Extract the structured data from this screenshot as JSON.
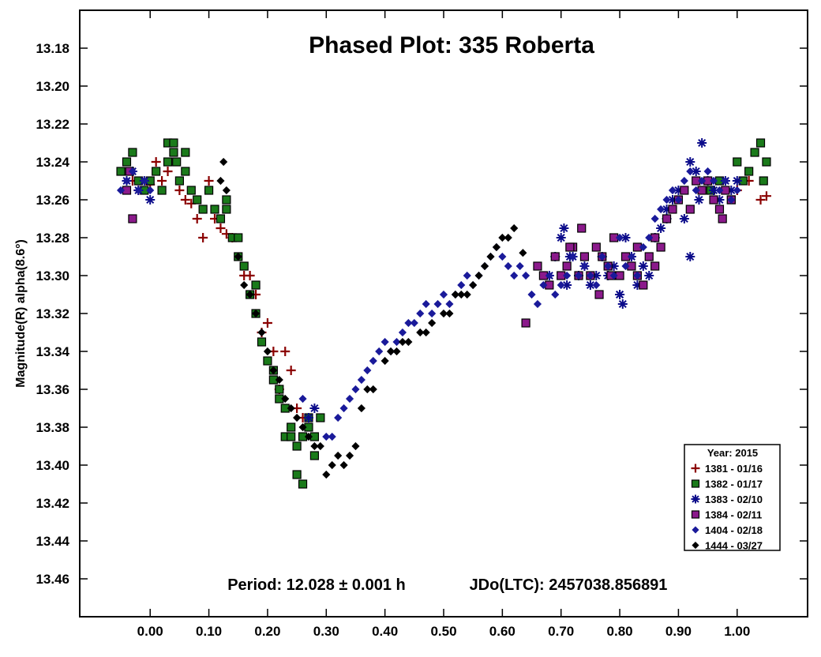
{
  "chart_data": {
    "type": "scatter",
    "title": "Phased Plot: 335 Roberta",
    "xlabel": "",
    "ylabel": "Magnitude(R) alpha(8.6°)",
    "xlim": [
      -0.12,
      1.12
    ],
    "ylim": [
      13.16,
      13.48
    ],
    "y_inverted": true,
    "x_ticks": [
      0.0,
      0.1,
      0.2,
      0.3,
      0.4,
      0.5,
      0.6,
      0.7,
      0.8,
      0.9,
      1.0
    ],
    "x_tick_labels": [
      "0.00",
      "0.10",
      "0.20",
      "0.30",
      "0.40",
      "0.50",
      "0.60",
      "0.70",
      "0.80",
      "0.90",
      "1.00"
    ],
    "y_ticks": [
      13.18,
      13.2,
      13.22,
      13.24,
      13.26,
      13.28,
      13.3,
      13.32,
      13.34,
      13.36,
      13.38,
      13.4,
      13.42,
      13.44,
      13.46
    ],
    "y_tick_labels": [
      "13.18",
      "13.20",
      "13.22",
      "13.24",
      "13.26",
      "13.28",
      "13.30",
      "13.32",
      "13.34",
      "13.36",
      "13.38",
      "13.40",
      "13.42",
      "13.44",
      "13.46"
    ],
    "grid": false,
    "legend_position": "bottom-right",
    "legend_title": "Year: 2015",
    "annotations": {
      "period": "Period: 12.028 ± 0.001 h",
      "epoch": "JDo(LTC): 2457038.856891"
    },
    "series": [
      {
        "name": "1381 - 01/16",
        "marker": "plus",
        "color": "#8b0000",
        "x": [
          -0.03,
          -0.02,
          0.0,
          0.01,
          0.02,
          0.03,
          0.05,
          0.06,
          0.07,
          0.08,
          0.09,
          0.1,
          0.11,
          0.12,
          0.13,
          0.14,
          0.16,
          0.17,
          0.18,
          0.19,
          0.2,
          0.21,
          0.22,
          0.23,
          0.24,
          0.25,
          0.26,
          1.0,
          1.02,
          1.04,
          1.05
        ],
        "y": [
          13.25,
          13.255,
          13.252,
          13.24,
          13.25,
          13.245,
          13.255,
          13.26,
          13.262,
          13.27,
          13.28,
          13.25,
          13.27,
          13.275,
          13.278,
          13.28,
          13.3,
          13.3,
          13.31,
          13.33,
          13.325,
          13.34,
          13.36,
          13.34,
          13.35,
          13.37,
          13.375,
          13.255,
          13.25,
          13.26,
          13.258
        ]
      },
      {
        "name": "1382 - 01/17",
        "marker": "square",
        "color": "#1a7a1a",
        "x": [
          -0.05,
          -0.04,
          -0.03,
          -0.02,
          -0.01,
          0.0,
          0.01,
          0.02,
          0.03,
          0.04,
          0.05,
          0.06,
          0.07,
          0.08,
          0.09,
          0.1,
          0.11,
          0.12,
          0.13,
          0.14,
          0.15,
          0.16,
          0.17,
          0.18,
          0.19,
          0.2,
          0.21,
          0.22,
          0.23,
          0.24,
          0.25,
          0.26,
          0.27,
          0.28,
          0.29,
          0.25,
          0.23,
          0.26,
          0.03,
          0.04,
          0.045,
          0.06,
          0.13,
          0.24,
          0.27,
          0.28,
          0.15,
          0.18,
          0.21,
          0.22,
          0.955,
          0.97,
          0.99,
          1.0,
          1.01,
          1.02,
          1.03,
          1.04,
          1.05,
          1.045
        ],
        "y": [
          13.245,
          13.24,
          13.235,
          13.25,
          13.255,
          13.25,
          13.245,
          13.255,
          13.24,
          13.235,
          13.25,
          13.245,
          13.255,
          13.26,
          13.265,
          13.255,
          13.265,
          13.27,
          13.265,
          13.28,
          13.29,
          13.295,
          13.31,
          13.32,
          13.335,
          13.345,
          13.355,
          13.36,
          13.37,
          13.38,
          13.39,
          13.385,
          13.38,
          13.395,
          13.375,
          13.405,
          13.385,
          13.41,
          13.23,
          13.23,
          13.24,
          13.235,
          13.26,
          13.385,
          13.375,
          13.385,
          13.28,
          13.305,
          13.35,
          13.365,
          13.255,
          13.25,
          13.26,
          13.24,
          13.25,
          13.245,
          13.235,
          13.23,
          13.24,
          13.25
        ]
      },
      {
        "name": "1383 - 02/10",
        "marker": "asterisk",
        "color": "#0b0b8a",
        "x": [
          -0.04,
          -0.03,
          -0.02,
          -0.01,
          0.0,
          0.27,
          0.28,
          0.68,
          0.69,
          0.7,
          0.71,
          0.72,
          0.73,
          0.74,
          0.75,
          0.76,
          0.77,
          0.78,
          0.79,
          0.8,
          0.81,
          0.82,
          0.83,
          0.84,
          0.85,
          0.86,
          0.87,
          0.88,
          0.89,
          0.9,
          0.91,
          0.92,
          0.93,
          0.94,
          0.95,
          0.96,
          0.97,
          0.98,
          0.99,
          1.0,
          0.705,
          0.715,
          0.8,
          0.805,
          0.92,
          0.935,
          0.88
        ],
        "y": [
          13.25,
          13.245,
          13.255,
          13.25,
          13.26,
          13.375,
          13.37,
          13.3,
          13.29,
          13.28,
          13.305,
          13.29,
          13.3,
          13.295,
          13.305,
          13.3,
          13.29,
          13.3,
          13.295,
          13.31,
          13.28,
          13.29,
          13.305,
          13.295,
          13.3,
          13.28,
          13.275,
          13.265,
          13.26,
          13.255,
          13.27,
          13.24,
          13.245,
          13.23,
          13.25,
          13.255,
          13.26,
          13.25,
          13.255,
          13.25,
          13.275,
          13.29,
          13.31,
          13.315,
          13.29,
          13.26,
          13.27
        ]
      },
      {
        "name": "1384 - 02/11",
        "marker": "square",
        "color": "#8b1a8b",
        "x": [
          -0.04,
          -0.03,
          -0.035,
          0.64,
          0.66,
          0.67,
          0.68,
          0.69,
          0.7,
          0.71,
          0.72,
          0.73,
          0.74,
          0.75,
          0.76,
          0.77,
          0.78,
          0.79,
          0.8,
          0.81,
          0.82,
          0.83,
          0.84,
          0.85,
          0.86,
          0.87,
          0.88,
          0.89,
          0.9,
          0.91,
          0.92,
          0.93,
          0.94,
          0.95,
          0.96,
          0.97,
          0.98,
          0.99,
          0.735,
          0.765,
          0.785,
          0.83,
          0.86,
          0.975,
          0.715
        ],
        "y": [
          13.255,
          13.27,
          13.245,
          13.325,
          13.295,
          13.3,
          13.305,
          13.29,
          13.3,
          13.295,
          13.285,
          13.3,
          13.29,
          13.3,
          13.285,
          13.29,
          13.295,
          13.28,
          13.3,
          13.29,
          13.295,
          13.285,
          13.305,
          13.29,
          13.28,
          13.285,
          13.27,
          13.265,
          13.26,
          13.255,
          13.265,
          13.25,
          13.255,
          13.25,
          13.26,
          13.265,
          13.255,
          13.26,
          13.275,
          13.31,
          13.3,
          13.3,
          13.295,
          13.27,
          13.285
        ]
      },
      {
        "name": "1404 - 02/18",
        "marker": "diamond",
        "color": "#1a1a9a",
        "x": [
          -0.05,
          -0.04,
          -0.03,
          -0.02,
          -0.01,
          0.0,
          0.26,
          0.3,
          0.31,
          0.32,
          0.33,
          0.34,
          0.35,
          0.36,
          0.37,
          0.38,
          0.39,
          0.4,
          0.41,
          0.42,
          0.43,
          0.44,
          0.45,
          0.46,
          0.47,
          0.48,
          0.49,
          0.5,
          0.51,
          0.52,
          0.53,
          0.54,
          0.55,
          0.56,
          0.57,
          0.58,
          0.59,
          0.6,
          0.61,
          0.62,
          0.63,
          0.64,
          0.65,
          0.66,
          0.67,
          0.68,
          0.69,
          0.7,
          0.71,
          0.72,
          0.73,
          0.74,
          0.75,
          0.76,
          0.77,
          0.78,
          0.79,
          0.8,
          0.81,
          0.82,
          0.83,
          0.84,
          0.85,
          0.86,
          0.87,
          0.88,
          0.89,
          0.9,
          0.91,
          0.92,
          0.93,
          0.94,
          0.95,
          0.96,
          0.97,
          0.98,
          0.99,
          1.0
        ],
        "y": [
          13.255,
          13.25,
          13.245,
          13.255,
          13.25,
          13.255,
          13.365,
          13.385,
          13.385,
          13.375,
          13.37,
          13.365,
          13.36,
          13.355,
          13.35,
          13.345,
          13.34,
          13.335,
          13.34,
          13.335,
          13.33,
          13.325,
          13.325,
          13.32,
          13.315,
          13.32,
          13.315,
          13.31,
          13.315,
          13.31,
          13.305,
          13.3,
          13.305,
          13.3,
          13.295,
          13.29,
          13.285,
          13.29,
          13.295,
          13.3,
          13.295,
          13.3,
          13.31,
          13.315,
          13.305,
          13.3,
          13.31,
          13.305,
          13.3,
          13.29,
          13.3,
          13.295,
          13.3,
          13.305,
          13.29,
          13.295,
          13.3,
          13.28,
          13.295,
          13.29,
          13.3,
          13.285,
          13.28,
          13.27,
          13.265,
          13.26,
          13.255,
          13.26,
          13.25,
          13.245,
          13.255,
          13.25,
          13.245,
          13.25,
          13.255,
          13.25,
          13.26,
          13.255
        ]
      },
      {
        "name": "1444 - 03/27",
        "marker": "diamond",
        "color": "#000000",
        "x": [
          0.12,
          0.125,
          0.13,
          0.15,
          0.16,
          0.17,
          0.18,
          0.19,
          0.2,
          0.21,
          0.22,
          0.23,
          0.24,
          0.25,
          0.26,
          0.27,
          0.28,
          0.29,
          0.3,
          0.31,
          0.32,
          0.33,
          0.34,
          0.35,
          0.38,
          0.4,
          0.42,
          0.44,
          0.46,
          0.48,
          0.5,
          0.52,
          0.53,
          0.55,
          0.57,
          0.58,
          0.59,
          0.6,
          0.61,
          0.62,
          0.635,
          0.36,
          0.37,
          0.41,
          0.43,
          0.47,
          0.51,
          0.54,
          0.56
        ],
        "y": [
          13.25,
          13.24,
          13.255,
          13.29,
          13.305,
          13.31,
          13.32,
          13.33,
          13.34,
          13.35,
          13.355,
          13.365,
          13.37,
          13.375,
          13.38,
          13.385,
          13.39,
          13.39,
          13.405,
          13.4,
          13.395,
          13.4,
          13.395,
          13.39,
          13.36,
          13.345,
          13.34,
          13.335,
          13.33,
          13.325,
          13.32,
          13.31,
          13.31,
          13.305,
          13.295,
          13.29,
          13.285,
          13.28,
          13.28,
          13.275,
          13.288,
          13.37,
          13.36,
          13.34,
          13.335,
          13.33,
          13.32,
          13.31,
          13.3
        ]
      }
    ]
  }
}
